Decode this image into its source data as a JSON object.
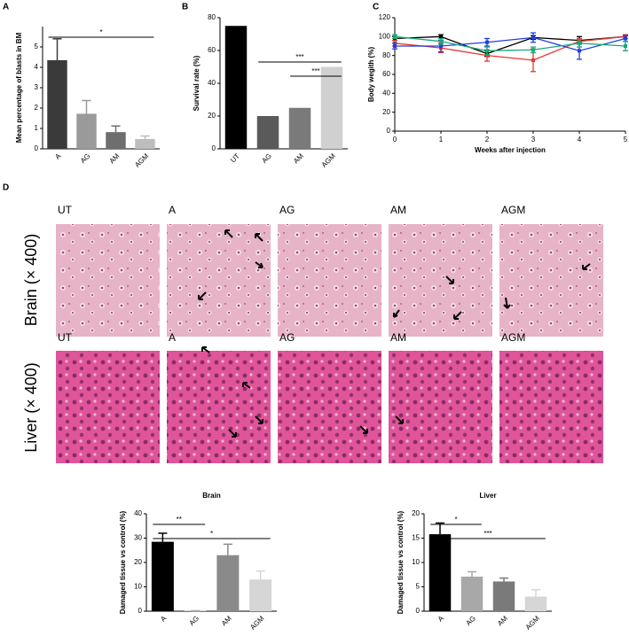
{
  "panel_letters": [
    "A",
    "B",
    "C",
    "D"
  ],
  "histology": {
    "columns": [
      "UT",
      "A",
      "AG",
      "AM",
      "AGM"
    ],
    "rows": [
      "Brain (× 400)",
      "Liver (× 400)"
    ]
  },
  "chart_data": [
    {
      "type": "bar",
      "ylabel": "Mean percentage of blasts in BM",
      "categories": [
        "A",
        "AG",
        "AM",
        "AGM"
      ],
      "values": [
        4.35,
        1.72,
        0.82,
        0.48
      ],
      "errors": [
        1.05,
        0.65,
        0.3,
        0.15
      ],
      "colors": [
        "#3a3a3a",
        "#9a9a9a",
        "#6e6e6e",
        "#bdbdbd"
      ],
      "ylim": [
        0,
        6
      ],
      "yticks": [
        0,
        1,
        2,
        3,
        4,
        5
      ],
      "annotations": [
        {
          "text": "*",
          "from": "A",
          "to": "AGM"
        }
      ]
    },
    {
      "type": "bar",
      "ylabel": "Survival rate (%)",
      "categories": [
        "UT",
        "AG",
        "AM",
        "AGM"
      ],
      "values": [
        75,
        20,
        25,
        50
      ],
      "colors": [
        "#000000",
        "#5a5a5a",
        "#7a7a7a",
        "#d0d0d0"
      ],
      "ylim": [
        0,
        80
      ],
      "yticks": [
        0,
        20,
        40,
        60,
        80
      ],
      "annotations": [
        {
          "text": "***",
          "from": "AG",
          "to": "AGM"
        },
        {
          "text": "***",
          "from": "AM",
          "to": "AGM"
        }
      ]
    },
    {
      "type": "line",
      "xlabel": "Weeks after injection",
      "ylabel": "Body wegith (%)",
      "x": [
        0,
        1,
        2,
        3,
        4,
        5
      ],
      "xlim": [
        0,
        5
      ],
      "xticks": [
        0,
        1,
        2,
        3,
        4,
        5
      ],
      "ylim": [
        0,
        120
      ],
      "yticks": [
        0,
        20,
        40,
        60,
        80,
        100,
        120
      ],
      "series": [
        {
          "color": "#000000",
          "values": [
            98,
            100,
            82,
            99,
            96,
            100
          ],
          "errors": [
            2,
            2,
            3,
            2,
            4,
            2
          ]
        },
        {
          "color": "#e8372c",
          "values": [
            93,
            88,
            80,
            75,
            95,
            100
          ],
          "errors": [
            3,
            5,
            6,
            12,
            3,
            2
          ]
        },
        {
          "color": "#1f3fe0",
          "values": [
            90,
            90,
            94,
            99,
            85,
            98
          ],
          "errors": [
            3,
            6,
            4,
            5,
            9,
            3
          ]
        },
        {
          "color": "#1aa877",
          "values": [
            100,
            95,
            85,
            86,
            93,
            90
          ],
          "errors": [
            2,
            3,
            4,
            3,
            4,
            5
          ]
        }
      ]
    },
    {
      "type": "bar",
      "title": "Brain",
      "ylabel": "Damaged tissue vs control (%)",
      "categories": [
        "A",
        "AG",
        "AM",
        "AGM"
      ],
      "values": [
        28.5,
        0.2,
        23,
        13
      ],
      "errors": [
        3.5,
        0,
        4.5,
        3.5
      ],
      "colors": [
        "#000000",
        "#a8a8a8",
        "#8a8a8a",
        "#d6d6d6"
      ],
      "ylim": [
        0,
        40
      ],
      "yticks": [
        0,
        10,
        20,
        30,
        40
      ],
      "annotations": [
        {
          "text": "**",
          "from": "A",
          "to": "AG"
        },
        {
          "text": "*",
          "from": "A",
          "to": "AGM"
        }
      ]
    },
    {
      "type": "bar",
      "title": "Liver",
      "ylabel": "Damaged tissue vs control (%)",
      "categories": [
        "A",
        "AG",
        "AM",
        "AGM"
      ],
      "values": [
        15.8,
        7.1,
        6.1,
        3.0
      ],
      "errors": [
        2.3,
        1.0,
        0.7,
        1.4
      ],
      "colors": [
        "#000000",
        "#a8a8a8",
        "#7a7a7a",
        "#d6d6d6"
      ],
      "ylim": [
        0,
        20
      ],
      "yticks": [
        0,
        5,
        10,
        15,
        20
      ],
      "annotations": [
        {
          "text": "*",
          "from": "A",
          "to": "AG"
        },
        {
          "text": "***",
          "from": "A",
          "to": "AGM"
        }
      ]
    }
  ]
}
